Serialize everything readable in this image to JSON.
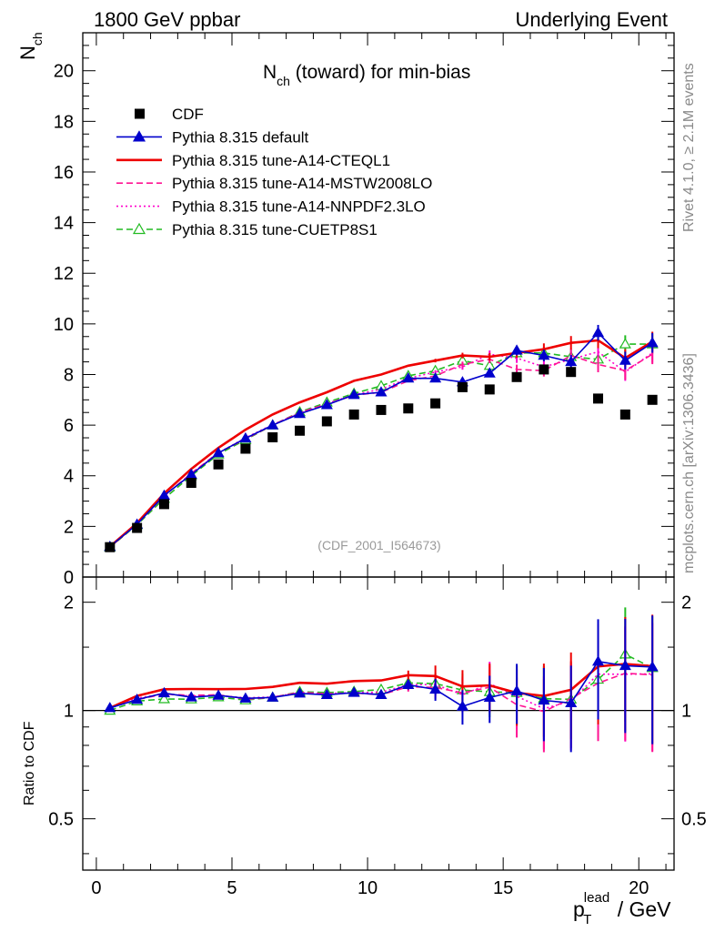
{
  "header": {
    "left_label": "1800 GeV ppbar",
    "right_label": "Underlying Event"
  },
  "side_labels": {
    "rivet": "Rivet 4.1.0, ≥ 2.1M events",
    "mcplots": "mcplots.cern.ch [arXiv:1306.3436]"
  },
  "chart_data": {
    "type": "scatter",
    "title": "N_ch (toward) for min-bias",
    "title_main": "N",
    "title_sub": "ch",
    "title_rest": " (toward) for min-bias",
    "analysis_id": "(CDF_2001_I564673)",
    "ylabel_main": "N",
    "ylabel_sub": "ch",
    "xlabel_main": "p",
    "xlabel_sup": "lead",
    "xlabel_sub": "T",
    "xlabel_unit": " / GeV",
    "ratio_ylabel": "Ratio to CDF",
    "xlim": [
      -0.5,
      21.3
    ],
    "ylim": [
      0,
      21.5
    ],
    "ratio_ylim": [
      0.36,
      2.35
    ],
    "x_ticks": [
      0,
      5,
      10,
      15,
      20
    ],
    "x_tick_labels": [
      "0",
      "5",
      "10",
      "15",
      "20"
    ],
    "y_ticks": [
      0,
      2,
      4,
      6,
      8,
      10,
      12,
      14,
      16,
      18,
      20
    ],
    "y_tick_labels": [
      "0",
      "2",
      "4",
      "6",
      "8",
      "10",
      "12",
      "14",
      "16",
      "18",
      "20"
    ],
    "ratio_ticks": [
      0.5,
      1,
      2
    ],
    "ratio_tick_labels": [
      "0.5",
      "1",
      "2"
    ],
    "x": [
      0.5,
      1.5,
      2.5,
      3.5,
      4.5,
      5.5,
      6.5,
      7.5,
      8.5,
      9.5,
      10.5,
      11.5,
      12.5,
      13.5,
      14.5,
      15.5,
      16.5,
      17.5,
      18.5,
      19.5,
      20.5
    ],
    "data": {
      "name": "CDF",
      "values": [
        1.18,
        1.94,
        2.88,
        3.72,
        4.45,
        5.07,
        5.52,
        5.78,
        6.15,
        6.42,
        6.6,
        6.66,
        6.86,
        7.5,
        7.41,
        7.9,
        8.2,
        8.1,
        7.05,
        6.42,
        7.0
      ]
    },
    "series": [
      {
        "name": "Pythia 8.315 default",
        "color": "#0000cc",
        "style": "solid",
        "marker": "triangle-filled",
        "values": [
          1.2,
          2.08,
          3.22,
          4.05,
          4.9,
          5.48,
          6.0,
          6.45,
          6.8,
          7.2,
          7.3,
          7.85,
          7.85,
          7.7,
          8.05,
          8.95,
          8.75,
          8.5,
          9.65,
          8.55,
          9.25
        ]
      },
      {
        "name": "Pythia 8.315 tune-A14-CTEQL1",
        "color": "#ee0000",
        "style": "solid",
        "marker": "none",
        "values": [
          1.2,
          2.13,
          3.3,
          4.27,
          5.1,
          5.82,
          6.42,
          6.9,
          7.3,
          7.75,
          8.0,
          8.35,
          8.55,
          8.75,
          8.7,
          8.85,
          9.0,
          9.25,
          9.35,
          8.65,
          9.3
        ]
      },
      {
        "name": "Pythia 8.315 tune-A14-MSTW2008LO",
        "color": "#ff1493",
        "style": "dashed",
        "marker": "none",
        "values": [
          1.2,
          2.08,
          3.2,
          4.1,
          4.92,
          5.45,
          6.0,
          6.5,
          6.83,
          7.18,
          7.3,
          7.75,
          7.95,
          8.4,
          8.6,
          8.2,
          8.15,
          8.75,
          8.4,
          8.15,
          8.8
        ]
      },
      {
        "name": "Pythia 8.315 tune-A14-NNPDF2.3LO",
        "color": "#ff00cc",
        "style": "dotted",
        "marker": "none",
        "values": [
          1.2,
          2.1,
          3.2,
          4.08,
          4.9,
          5.5,
          6.02,
          6.48,
          6.85,
          7.2,
          7.42,
          7.85,
          8.1,
          8.3,
          8.8,
          8.65,
          8.3,
          8.6,
          8.9,
          8.1,
          8.85
        ]
      },
      {
        "name": "Pythia 8.315 tune-CUETP8S1",
        "color": "#22bb22",
        "style": "dashed",
        "marker": "triangle-open",
        "values": [
          1.18,
          2.06,
          3.1,
          4.0,
          4.85,
          5.42,
          6.0,
          6.52,
          6.9,
          7.25,
          7.55,
          7.95,
          8.15,
          8.55,
          8.35,
          8.85,
          8.85,
          8.7,
          8.6,
          9.2,
          9.2
        ]
      }
    ]
  }
}
